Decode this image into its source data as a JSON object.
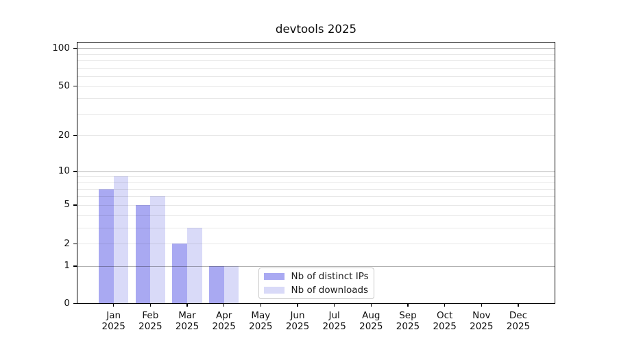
{
  "chart_data": {
    "type": "bar",
    "title": "devtools 2025",
    "scale": "log1p",
    "categories": [
      "Jan",
      "Feb",
      "Mar",
      "Apr",
      "May",
      "Jun",
      "Jul",
      "Aug",
      "Sep",
      "Oct",
      "Nov",
      "Dec"
    ],
    "category_year": "2025",
    "series": [
      {
        "name": "Nb of distinct IPs",
        "color": "#a9a9f2",
        "values": [
          7,
          5,
          2,
          1,
          0,
          0,
          0,
          0,
          0,
          0,
          0,
          0
        ]
      },
      {
        "name": "Nb of downloads",
        "color": "#d9daf8",
        "values": [
          9,
          6,
          3,
          1,
          0,
          0,
          0,
          0,
          0,
          0,
          0,
          0
        ]
      }
    ],
    "yticks": [
      0,
      1,
      2,
      5,
      10,
      20,
      50,
      100
    ],
    "major_grid_values": [
      1,
      10,
      100
    ],
    "minor_grid_values": [
      2,
      3,
      4,
      5,
      6,
      7,
      8,
      9,
      20,
      30,
      40,
      50,
      60,
      70,
      80,
      90
    ],
    "ylim": [
      0,
      112
    ],
    "grid": "horizontal",
    "legend_position": "lower center"
  }
}
